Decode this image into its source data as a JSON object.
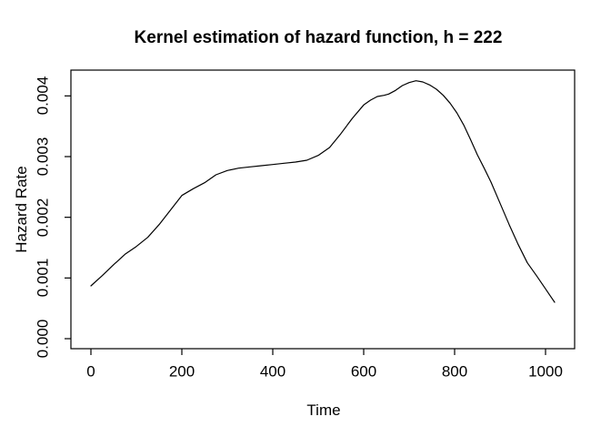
{
  "title": "Kernel estimation of hazard function, h = 222",
  "axes": {
    "x_label": "Time",
    "y_label": "Hazard Rate",
    "x_ticks": [
      "0",
      "200",
      "400",
      "600",
      "800",
      "1000"
    ],
    "y_ticks": [
      "0.000",
      "0.001",
      "0.002",
      "0.003",
      "0.004"
    ]
  },
  "colors": {
    "background": "#ffffff",
    "foreground": "#000000"
  },
  "chart_data": {
    "type": "line",
    "title": "Kernel estimation of hazard function, h = 222",
    "xlabel": "Time",
    "ylabel": "Hazard Rate",
    "grid": false,
    "legend": false,
    "line_color": "#000000",
    "xlim": [
      -44,
      1064
    ],
    "ylim": [
      -0.000165,
      0.004425
    ],
    "x_tick_values": [
      0,
      200,
      400,
      600,
      800,
      1000
    ],
    "y_tick_values": [
      0,
      0.001,
      0.002,
      0.003,
      0.004
    ],
    "x": [
      0,
      25,
      50,
      75,
      100,
      125,
      150,
      175,
      200,
      225,
      250,
      275,
      300,
      325,
      350,
      375,
      400,
      425,
      450,
      475,
      500,
      525,
      550,
      575,
      600,
      615,
      630,
      645,
      655,
      670,
      685,
      700,
      715,
      730,
      745,
      760,
      775,
      790,
      805,
      820,
      835,
      850,
      865,
      880,
      900,
      920,
      940,
      960,
      980,
      1000,
      1010,
      1020
    ],
    "y": [
      0.00087,
      0.00104,
      0.00122,
      0.00139,
      0.00152,
      0.00167,
      0.00188,
      0.00212,
      0.00236,
      0.00247,
      0.00257,
      0.0027,
      0.00277,
      0.00281,
      0.00283,
      0.00285,
      0.00287,
      0.00289,
      0.00291,
      0.00294,
      0.00302,
      0.00315,
      0.00338,
      0.00363,
      0.00385,
      0.00393,
      0.00399,
      0.00401,
      0.00403,
      0.00409,
      0.00417,
      0.00422,
      0.00425,
      0.00423,
      0.00418,
      0.00411,
      0.00401,
      0.00388,
      0.00372,
      0.00352,
      0.00328,
      0.00303,
      0.00281,
      0.00258,
      0.00223,
      0.00188,
      0.00155,
      0.00125,
      0.00104,
      0.00082,
      0.00071,
      0.0006
    ]
  }
}
